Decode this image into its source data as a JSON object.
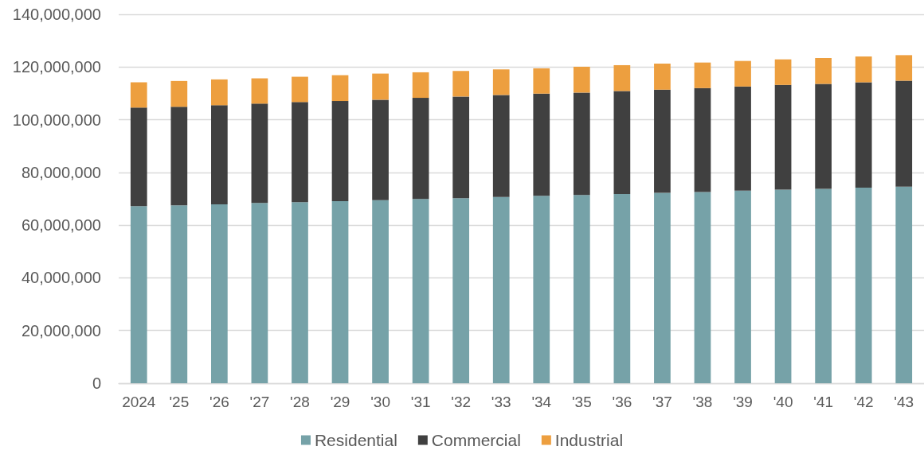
{
  "chart_data": {
    "type": "bar",
    "stacked": true,
    "categories": [
      "2024",
      "'25",
      "'26",
      "'27",
      "'28",
      "'29",
      "'30",
      "'31",
      "'32",
      "'33",
      "'34",
      "'35",
      "'36",
      "'37",
      "'38",
      "'39",
      "'40",
      "'41",
      "'42",
      "'43"
    ],
    "series": [
      {
        "name": "Residential",
        "color": "#76a2a8",
        "values": [
          67200000,
          67500000,
          67900000,
          68400000,
          68700000,
          69100000,
          69500000,
          69900000,
          70200000,
          70700000,
          71100000,
          71400000,
          71800000,
          72300000,
          72600000,
          73100000,
          73500000,
          73800000,
          74200000,
          74600000
        ]
      },
      {
        "name": "Commercial",
        "color": "#404040",
        "values": [
          37400000,
          37400000,
          37600000,
          37700000,
          38000000,
          38000000,
          38100000,
          38400000,
          38600000,
          38700000,
          38800000,
          38900000,
          39100000,
          39100000,
          39400000,
          39500000,
          39700000,
          39800000,
          40000000,
          40200000
        ]
      },
      {
        "name": "Industrial",
        "color": "#ed9f3f",
        "values": [
          9600000,
          9800000,
          9800000,
          9600000,
          9600000,
          9800000,
          9900000,
          9700000,
          9700000,
          9700000,
          9600000,
          9800000,
          9800000,
          9900000,
          9700000,
          9700000,
          9700000,
          9800000,
          9800000,
          9700000
        ]
      }
    ],
    "ylim": [
      0,
      140000000
    ],
    "yticks": [
      {
        "value": 0,
        "label": "0"
      },
      {
        "value": 20000000,
        "label": "20,000,000"
      },
      {
        "value": 40000000,
        "label": "40,000,000"
      },
      {
        "value": 60000000,
        "label": "60,000,000"
      },
      {
        "value": 80000000,
        "label": "80,000,000"
      },
      {
        "value": 100000000,
        "label": "100,000,000"
      },
      {
        "value": 120000000,
        "label": "120,000,000"
      },
      {
        "value": 140000000,
        "label": "140,000,000"
      }
    ],
    "grid": "y",
    "legend": "bottom"
  }
}
